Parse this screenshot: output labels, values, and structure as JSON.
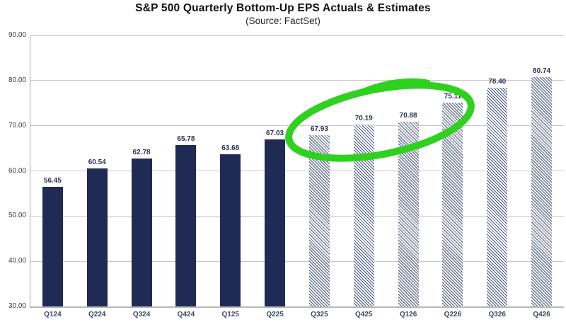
{
  "chart_data": {
    "type": "bar",
    "title": "S&P 500 Quarterly Bottom-Up EPS Actuals & Estimates",
    "subtitle": "(Source: FactSet)",
    "categories": [
      "Q124",
      "Q224",
      "Q324",
      "Q424",
      "Q125",
      "Q225",
      "Q325",
      "Q425",
      "Q126",
      "Q226",
      "Q326",
      "Q426"
    ],
    "values": [
      56.45,
      60.54,
      62.78,
      65.78,
      63.68,
      67.03,
      67.93,
      70.19,
      70.88,
      75.11,
      78.4,
      80.74
    ],
    "data_labels": [
      "56.45",
      "60.54",
      "62.78",
      "65.78",
      "63.68",
      "67.03",
      "67.93",
      "70.19",
      "70.88",
      "75.11",
      "78.40",
      "80.74"
    ],
    "bar_styles": [
      "actual",
      "actual",
      "actual",
      "actual",
      "actual",
      "actual",
      "estimate",
      "estimate",
      "estimate",
      "estimate",
      "estimate",
      "estimate"
    ],
    "series_meaning": {
      "actual": "solid navy bar (reported actuals)",
      "estimate": "diagonal-hatched bar (estimates)"
    },
    "xlabel": "",
    "ylabel": "",
    "ylim": [
      30,
      90
    ],
    "ytick_step": 10,
    "yticks": [
      "90.00",
      "80.00",
      "70.00",
      "60.00",
      "50.00",
      "40.00",
      "30.00"
    ],
    "grid": true,
    "legend": "none",
    "colors": {
      "actual_bar": "#1f2a55",
      "estimate_hatch": "#45547f",
      "gridline": "#c9c9c9",
      "axis_line": "#a6a6a6",
      "bottom_axis_line": "#b8b8b8",
      "annotation_green": "#2ed11e"
    },
    "annotation": {
      "type": "hand-drawn-circle",
      "color": "#2ed11e",
      "circled_categories": [
        "Q325",
        "Q425",
        "Q126",
        "Q226"
      ]
    }
  }
}
